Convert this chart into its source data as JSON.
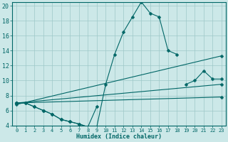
{
  "xlabel": "Humidex (Indice chaleur)",
  "bg_color": "#cce8e8",
  "grid_color": "#9ec8c8",
  "line_color": "#006666",
  "xlim": [
    -0.5,
    23.5
  ],
  "ylim": [
    4,
    20.5
  ],
  "xticks": [
    0,
    1,
    2,
    3,
    4,
    5,
    6,
    7,
    8,
    9,
    10,
    11,
    12,
    13,
    14,
    15,
    16,
    17,
    18,
    19,
    20,
    21,
    22,
    23
  ],
  "yticks": [
    4,
    6,
    8,
    10,
    12,
    14,
    16,
    18,
    20
  ],
  "line1_x": [
    0,
    1,
    2,
    3,
    4,
    5,
    6,
    7,
    8,
    9,
    10,
    11,
    12,
    13,
    14,
    15,
    16,
    17,
    18
  ],
  "line1_y": [
    7.0,
    7.0,
    6.5,
    6.0,
    5.5,
    4.8,
    4.5,
    4.2,
    3.8,
    3.8,
    9.5,
    13.5,
    16.5,
    18.5,
    20.5,
    19.0,
    18.5,
    14.0,
    13.5
  ],
  "line2_x": [
    0,
    1,
    2,
    3,
    4,
    5,
    6,
    7,
    8,
    9
  ],
  "line2_y": [
    7.0,
    7.0,
    6.5,
    6.0,
    5.5,
    4.8,
    4.5,
    4.2,
    3.8,
    6.5
  ],
  "line3_x": [
    0,
    23
  ],
  "line3_y": [
    7.0,
    9.5
  ],
  "line4_x": [
    0,
    23
  ],
  "line4_y": [
    7.0,
    7.8
  ],
  "line5_x": [
    0,
    23
  ],
  "line5_y": [
    6.8,
    13.3
  ],
  "line6_x": [
    19,
    20,
    21,
    22,
    23
  ],
  "line6_y": [
    9.5,
    10.0,
    11.3,
    10.2,
    10.2
  ],
  "marker_size": 2.5
}
